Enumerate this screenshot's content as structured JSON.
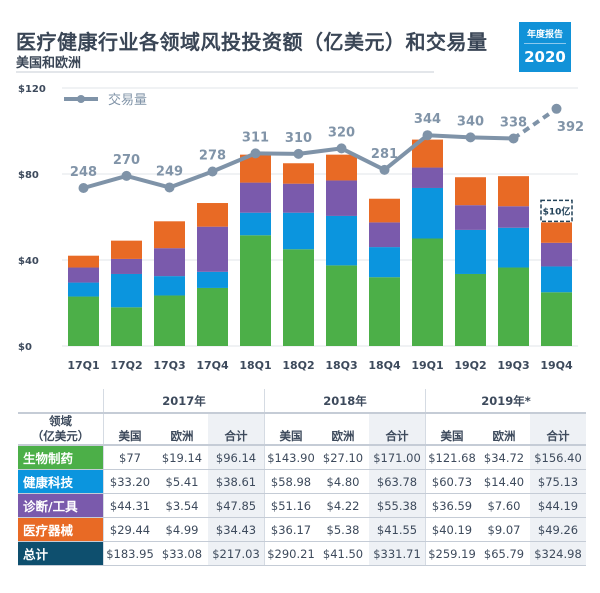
{
  "header": {
    "title": "医疗健康行业各领域风投投资额（亿美元）和交易量",
    "subtitle": "美国和欧洲",
    "badge_top": "年度报告",
    "badge_year": "2020"
  },
  "colors": {
    "biopharma": "#4caf48",
    "healthtech": "#0b95de",
    "diagnostics": "#7a5aac",
    "devices": "#e86a25",
    "total": "#0e4f6e",
    "line": "#7f93a8",
    "grid": "#e2e5e9"
  },
  "chart_data": {
    "type": "bar",
    "stacked": true,
    "title": "医疗健康行业各领域风投投资额（亿美元）和交易量",
    "subtitle": "美国和欧洲",
    "categories": [
      "17Q1",
      "17Q2",
      "17Q3",
      "17Q4",
      "18Q1",
      "18Q2",
      "18Q3",
      "18Q4",
      "19Q1",
      "19Q2",
      "19Q3",
      "19Q4"
    ],
    "y_ticks": [
      "$0",
      "$40",
      "$80",
      "$120"
    ],
    "ylim": [
      0,
      120
    ],
    "grid": true,
    "series": [
      {
        "name": "生物制药",
        "color_key": "biopharma",
        "values": [
          23,
          18,
          23.5,
          27,
          51.5,
          45,
          37.5,
          32,
          50,
          33.5,
          36.5,
          25
        ]
      },
      {
        "name": "健康科技",
        "color_key": "healthtech",
        "values": [
          6.5,
          15.5,
          9,
          7.5,
          10.5,
          17,
          23,
          14,
          23.5,
          20.5,
          18.5,
          12
        ]
      },
      {
        "name": "诊断/工具",
        "color_key": "diagnostics",
        "values": [
          7,
          7,
          13,
          21,
          14,
          13.5,
          16.5,
          11.5,
          9.5,
          11.5,
          10,
          11
        ]
      },
      {
        "name": "医疗器械",
        "color_key": "devices",
        "values": [
          5.5,
          8.5,
          12.5,
          11,
          13,
          9.5,
          12,
          11,
          13,
          13,
          14,
          9.5
        ]
      }
    ],
    "line_series": {
      "name": "交易量",
      "values": [
        248,
        270,
        249,
        278,
        311,
        310,
        320,
        281,
        344,
        340,
        338,
        392
      ],
      "labels": [
        "248",
        "270",
        "249",
        "278",
        "311",
        "310",
        "320",
        "281",
        "344",
        "340",
        "338",
        "392"
      ],
      "projected_last": true
    },
    "legend": {
      "label": "交易量",
      "position": "top-left"
    },
    "annotation": "$10亿"
  },
  "table": {
    "sector_header": [
      "领域",
      "（亿美元）"
    ],
    "years": [
      "2017年",
      "2018年",
      "2019年*"
    ],
    "subheaders": [
      "美国",
      "欧洲",
      "合计"
    ],
    "rows": [
      {
        "label": "生物制药",
        "color_key": "biopharma",
        "values": [
          "$77",
          "$19.14",
          "$96.14",
          "$143.90",
          "$27.10",
          "$171.00",
          "$121.68",
          "$34.72",
          "$156.40"
        ]
      },
      {
        "label": "健康科技",
        "color_key": "healthtech",
        "values": [
          "$33.20",
          "$5.41",
          "$38.61",
          "$58.98",
          "$4.80",
          "$63.78",
          "$60.73",
          "$14.40",
          "$75.13"
        ]
      },
      {
        "label": "诊断/工具",
        "color_key": "diagnostics",
        "values": [
          "$44.31",
          "$3.54",
          "$47.85",
          "$51.16",
          "$4.22",
          "$55.38",
          "$36.59",
          "$7.60",
          "$44.19"
        ]
      },
      {
        "label": "医疗器械",
        "color_key": "devices",
        "values": [
          "$29.44",
          "$4.99",
          "$34.43",
          "$36.17",
          "$5.38",
          "$41.55",
          "$40.19",
          "$9.07",
          "$49.26"
        ]
      },
      {
        "label": "总计",
        "color_key": "total",
        "values": [
          "$183.95",
          "$33.08",
          "$217.03",
          "$290.21",
          "$41.50",
          "$331.71",
          "$259.19",
          "$65.79",
          "$324.98"
        ]
      }
    ]
  }
}
